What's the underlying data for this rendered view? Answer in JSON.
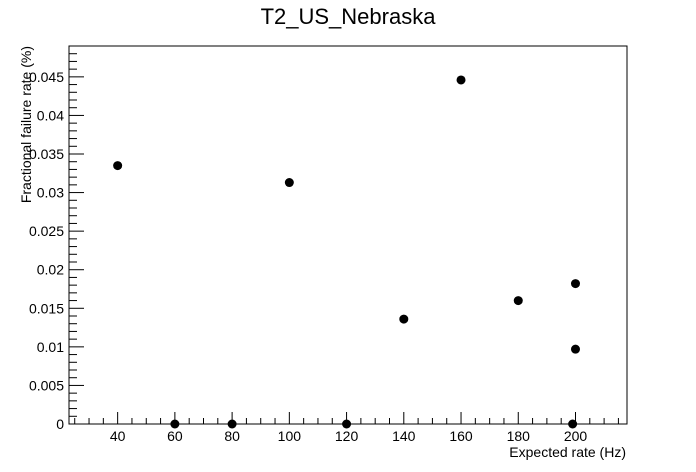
{
  "chart_data": {
    "type": "scatter",
    "title": "T2_US_Nebraska",
    "xlabel": "Expected rate (Hz)",
    "ylabel": "Fractional failure rate (%)",
    "xlim": [
      23,
      218
    ],
    "ylim": [
      0,
      0.049
    ],
    "x_ticks": [
      40,
      60,
      80,
      100,
      120,
      140,
      160,
      180,
      200
    ],
    "x_tick_labels": [
      "40",
      "60",
      "80",
      "100",
      "120",
      "140",
      "160",
      "180",
      "200"
    ],
    "y_ticks": [
      0,
      0.005,
      0.01,
      0.015,
      0.02,
      0.025,
      0.03,
      0.035,
      0.04,
      0.045
    ],
    "y_tick_labels": [
      "0",
      "0.005",
      "0.01",
      "0.015",
      "0.02",
      "0.025",
      "0.03",
      "0.035",
      "0.04",
      "0.045"
    ],
    "grid": false,
    "marker_color": "#000000",
    "points": [
      {
        "x": 40,
        "y": 0.0335
      },
      {
        "x": 60,
        "y": 0.0
      },
      {
        "x": 80,
        "y": 0.0
      },
      {
        "x": 100,
        "y": 0.0313
      },
      {
        "x": 120,
        "y": 0.0
      },
      {
        "x": 140,
        "y": 0.0136
      },
      {
        "x": 160,
        "y": 0.0446
      },
      {
        "x": 180,
        "y": 0.016
      },
      {
        "x": 199,
        "y": 0.0
      },
      {
        "x": 200,
        "y": 0.0182
      },
      {
        "x": 200,
        "y": 0.0097
      }
    ]
  }
}
